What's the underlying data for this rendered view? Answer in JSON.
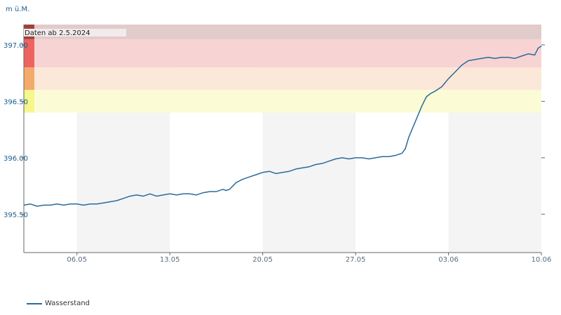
{
  "chart_data": {
    "type": "line",
    "y_unit": "m ü.M.",
    "annotation": "Daten ab  2.5.2024",
    "ylim": [
      395.16,
      397.18
    ],
    "yticks": [
      395.5,
      396.0,
      396.5,
      397.0
    ],
    "ytick_labels": [
      "395.50",
      "396.00",
      "396.50",
      "397.00"
    ],
    "xlim": [
      "2024-05-02",
      "2024-06-10"
    ],
    "xticks": [
      "2024-05-06",
      "2024-05-13",
      "2024-05-20",
      "2024-05-27",
      "2024-06-03",
      "2024-06-10"
    ],
    "xtick_labels": [
      "06.05",
      "13.05",
      "20.05",
      "27.05",
      "03.06",
      "10.06"
    ],
    "grid": false,
    "week_shading": [
      [
        "2024-05-06",
        "2024-05-13"
      ],
      [
        "2024-05-20",
        "2024-05-27"
      ],
      [
        "2024-06-03",
        "2024-06-10"
      ]
    ],
    "bands": [
      {
        "from": 397.05,
        "to": 397.18,
        "color": "#e2cbcb",
        "marker_color": "#a0413e"
      },
      {
        "from": 396.8,
        "to": 397.05,
        "color": "#f8d3d3",
        "marker_color": "#ee6360"
      },
      {
        "from": 396.6,
        "to": 396.8,
        "color": "#fbe8d8",
        "marker_color": "#f4aa6a"
      },
      {
        "from": 396.4,
        "to": 396.6,
        "color": "#fbfcd6",
        "marker_color": "#f6f68c"
      }
    ],
    "series": [
      {
        "name": "Wasserstand",
        "color": "#2a6b9b",
        "points": [
          [
            "2024-05-02 00:00",
            395.58
          ],
          [
            "2024-05-02 12:00",
            395.59
          ],
          [
            "2024-05-03 00:00",
            395.57
          ],
          [
            "2024-05-03 12:00",
            395.58
          ],
          [
            "2024-05-04 00:00",
            395.58
          ],
          [
            "2024-05-04 12:00",
            395.59
          ],
          [
            "2024-05-05 00:00",
            395.58
          ],
          [
            "2024-05-05 12:00",
            395.59
          ],
          [
            "2024-05-06 00:00",
            395.59
          ],
          [
            "2024-05-06 12:00",
            395.58
          ],
          [
            "2024-05-07 00:00",
            395.59
          ],
          [
            "2024-05-07 12:00",
            395.59
          ],
          [
            "2024-05-08 00:00",
            395.6
          ],
          [
            "2024-05-08 12:00",
            395.61
          ],
          [
            "2024-05-09 00:00",
            395.62
          ],
          [
            "2024-05-09 12:00",
            395.64
          ],
          [
            "2024-05-10 00:00",
            395.66
          ],
          [
            "2024-05-10 12:00",
            395.67
          ],
          [
            "2024-05-11 00:00",
            395.66
          ],
          [
            "2024-05-11 12:00",
            395.68
          ],
          [
            "2024-05-12 00:00",
            395.66
          ],
          [
            "2024-05-12 12:00",
            395.67
          ],
          [
            "2024-05-13 00:00",
            395.68
          ],
          [
            "2024-05-13 12:00",
            395.67
          ],
          [
            "2024-05-14 00:00",
            395.68
          ],
          [
            "2024-05-14 12:00",
            395.68
          ],
          [
            "2024-05-15 00:00",
            395.67
          ],
          [
            "2024-05-15 12:00",
            395.69
          ],
          [
            "2024-05-16 00:00",
            395.7
          ],
          [
            "2024-05-16 12:00",
            395.7
          ],
          [
            "2024-05-17 00:00",
            395.72
          ],
          [
            "2024-05-17 06:00",
            395.71
          ],
          [
            "2024-05-17 12:00",
            395.72
          ],
          [
            "2024-05-18 00:00",
            395.78
          ],
          [
            "2024-05-18 12:00",
            395.81
          ],
          [
            "2024-05-19 00:00",
            395.83
          ],
          [
            "2024-05-19 12:00",
            395.85
          ],
          [
            "2024-05-20 00:00",
            395.87
          ],
          [
            "2024-05-20 12:00",
            395.88
          ],
          [
            "2024-05-21 00:00",
            395.86
          ],
          [
            "2024-05-21 12:00",
            395.87
          ],
          [
            "2024-05-22 00:00",
            395.88
          ],
          [
            "2024-05-22 12:00",
            395.9
          ],
          [
            "2024-05-23 00:00",
            395.91
          ],
          [
            "2024-05-23 12:00",
            395.92
          ],
          [
            "2024-05-24 00:00",
            395.94
          ],
          [
            "2024-05-24 12:00",
            395.95
          ],
          [
            "2024-05-25 00:00",
            395.97
          ],
          [
            "2024-05-25 12:00",
            395.99
          ],
          [
            "2024-05-26 00:00",
            396.0
          ],
          [
            "2024-05-26 12:00",
            395.99
          ],
          [
            "2024-05-27 00:00",
            396.0
          ],
          [
            "2024-05-27 12:00",
            396.0
          ],
          [
            "2024-05-28 00:00",
            395.99
          ],
          [
            "2024-05-28 12:00",
            396.0
          ],
          [
            "2024-05-29 00:00",
            396.01
          ],
          [
            "2024-05-29 12:00",
            396.01
          ],
          [
            "2024-05-30 00:00",
            396.02
          ],
          [
            "2024-05-30 12:00",
            396.04
          ],
          [
            "2024-05-30 18:00",
            396.08
          ],
          [
            "2024-05-31 00:00",
            396.18
          ],
          [
            "2024-05-31 12:00",
            396.32
          ],
          [
            "2024-06-01 00:00",
            396.46
          ],
          [
            "2024-06-01 08:00",
            396.54
          ],
          [
            "2024-06-01 16:00",
            396.57
          ],
          [
            "2024-06-02 00:00",
            396.59
          ],
          [
            "2024-06-02 12:00",
            396.63
          ],
          [
            "2024-06-03 00:00",
            396.7
          ],
          [
            "2024-06-03 12:00",
            396.76
          ],
          [
            "2024-06-04 00:00",
            396.82
          ],
          [
            "2024-06-04 12:00",
            396.86
          ],
          [
            "2024-06-05 00:00",
            396.87
          ],
          [
            "2024-06-05 12:00",
            396.88
          ],
          [
            "2024-06-06 00:00",
            396.89
          ],
          [
            "2024-06-06 12:00",
            396.88
          ],
          [
            "2024-06-07 00:00",
            396.89
          ],
          [
            "2024-06-07 12:00",
            396.89
          ],
          [
            "2024-06-08 00:00",
            396.88
          ],
          [
            "2024-06-08 12:00",
            396.9
          ],
          [
            "2024-06-09 00:00",
            396.92
          ],
          [
            "2024-06-09 12:00",
            396.91
          ],
          [
            "2024-06-09 18:00",
            396.97
          ],
          [
            "2024-06-10 00:00",
            396.99
          ]
        ]
      }
    ]
  }
}
